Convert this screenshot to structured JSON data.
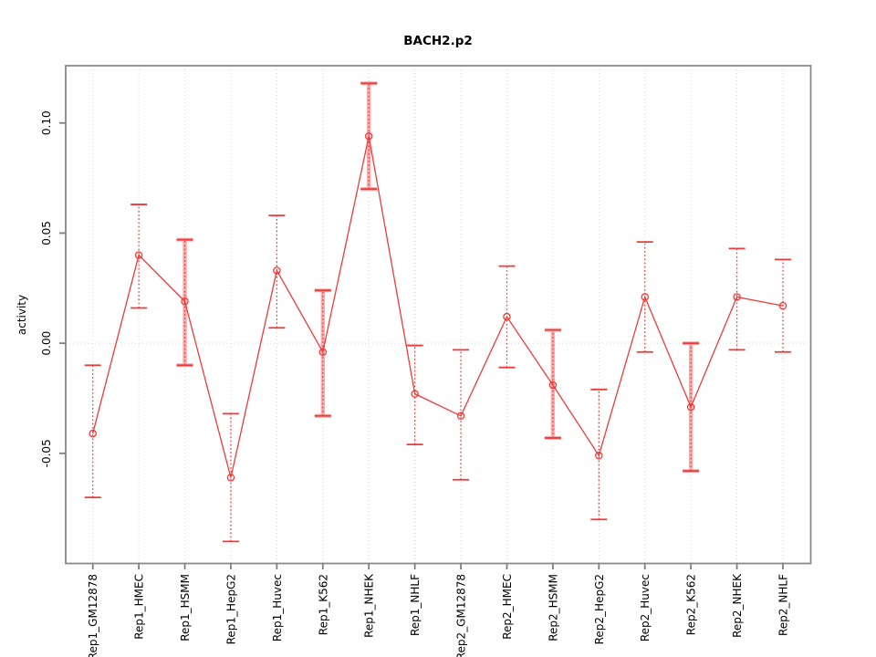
{
  "chart_data": {
    "type": "line",
    "title": "BACH2.p2",
    "ylabel": "activity",
    "xlabel": "",
    "categories": [
      "Rep1_GM12878",
      "Rep1_HMEC",
      "Rep1_HSMM",
      "Rep1_HepG2",
      "Rep1_Huvec",
      "Rep1_K562",
      "Rep1_NHEK",
      "Rep1_NHLF",
      "Rep2_GM12878",
      "Rep2_HMEC",
      "Rep2_HSMM",
      "Rep2_HepG2",
      "Rep2_Huvec",
      "Rep2_K562",
      "Rep2_NHEK",
      "Rep2_NHLF"
    ],
    "series": [
      {
        "name": "activity",
        "values": [
          -0.041,
          0.04,
          0.019,
          -0.061,
          0.033,
          -0.004,
          0.094,
          -0.023,
          -0.033,
          0.012,
          -0.019,
          -0.051,
          0.021,
          -0.029,
          0.021,
          0.017
        ],
        "err_lo": [
          -0.07,
          0.016,
          -0.01,
          -0.09,
          0.007,
          -0.033,
          0.07,
          -0.046,
          -0.062,
          -0.011,
          -0.043,
          -0.08,
          -0.004,
          -0.058,
          -0.003,
          -0.004
        ],
        "err_hi": [
          -0.01,
          0.063,
          0.047,
          -0.032,
          0.058,
          0.024,
          0.118,
          -0.001,
          -0.003,
          0.035,
          0.006,
          -0.021,
          0.046,
          0.0,
          0.043,
          0.038
        ],
        "thick_band": [
          false,
          false,
          true,
          false,
          false,
          true,
          true,
          false,
          false,
          false,
          true,
          false,
          false,
          true,
          false,
          false
        ]
      }
    ],
    "yticks": [
      {
        "v": 0.1,
        "label": "0.10"
      },
      {
        "v": 0.05,
        "label": "0.05"
      },
      {
        "v": 0.0,
        "label": "0.00"
      },
      {
        "v": -0.05,
        "label": "-0.05"
      }
    ],
    "ylim": [
      -0.1,
      0.126
    ],
    "grid": {
      "vertical": "per-category",
      "horizontal_at": 0.0,
      "style": "dotted"
    },
    "legend": "none",
    "point_marker": "open-circle",
    "colors": {
      "line": "#ee3b39",
      "band": "#f7adad",
      "grid": "#d7d7d7",
      "box": "#8a8a8a",
      "tick": "#7f7f7f",
      "text": "#000000",
      "background": "#ffffff"
    }
  }
}
